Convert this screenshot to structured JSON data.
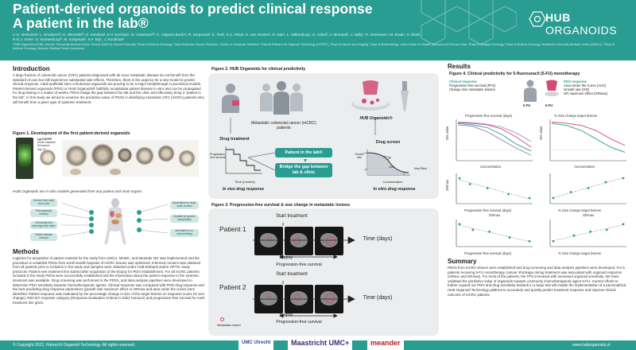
{
  "header": {
    "title_line1": "Patient-derived organoids to predict clinical response",
    "title_line2": "A patient in the lab®",
    "authors": "C.S. Verissimo¹, L. Smabers²³, E. Wensink²³, E. Koedoot¹, E.V. Encinas¹, M. Huismans²³, C. Higuera Barón¹, R. Korporaal¹, E. Teal¹, K.C. Pitsa¹, E. van Oosten², R. Nair¹, L. Valkenburg¹, G. Cirkel¹, A. Brousali¹, J. Sally¹, R. Overmeer¹, M. Braat¹, S. Elias², R.G.J. Vries¹, O. Kranenburg²³, M. Koopman², S.F. Boj¹, J. Roodhart²",
    "affiliations": "¹HUB Organoids (HUB), Utrecht, ²University Medical Center Utrecht (UMCU) Utrecht University, ³Dept of Medical Oncology, ⁴Dept Molecular Cancer Research, Center for Molecular Medicine, ⁵Utrecht Platform for Organoid Technology (UPORT), ⁶Dept of Cancer and Imaging, ⁷Dept of Epidemiology, Julius Center for Health Sciences and Primary Care, ⁸Dept of Surgical Oncology, ⁹Dept of Medical Oncology, Maastricht University Medical Center (MUMC), ¹⁰Dept of Medical Oncology, Meander Medical Center Amersfoort",
    "logo_name": "HUB",
    "logo_suffix": " ORGANOIDS"
  },
  "intro": {
    "heading": "Introduction",
    "text": "A large fraction of colorectal cancer (CRC) patients diagnosed with de novo metastatic disease do not benefit from the standard of care but still experience substantial side effects. Therefore, there is the urgency for a new model to predict clinical response. Adult epithelial stem cell-derived organoids are proving to be a major breakthrough in preclinical models. Patient-derived organoids (PDO) or HUB Organoids® faithfully recapitulate patient disease in vitro and can be propagated for drug testing in a matter of weeks. PDOs bridge the gap between the lab and the clinic and effectively bring a \"patient in the lab\". In this study we aimed to examine the predictive value of PDOs in identifying metastatic CRC (mCRC) patients who will benefit from a given type of systemic treatment.",
    "fig1_title": "Figure 1. Development of the first patient-derived organoids",
    "fig1_caption": "HUB Organoids are in vitro models generated from any patient and most organs",
    "fig1_tags": [
      "Lgr5-EGFP",
      "Small Intestine Enclosure",
      "day 14"
    ],
    "fig1_bubbles_left": [
      "Derived from adult stem cells",
      "Phenotypically relevant",
      "Genetically and phenotypically stable",
      "Patient disease relevant"
    ],
    "fig1_bubbles_right": [
      "Expandable for large-scale screens",
      "Suitable for genetic manipulation",
      "Amenable to co-culture/editing"
    ]
  },
  "methods": {
    "heading": "Methods",
    "text": "Logistics for acquisition of patient material for the study from UMCU, MUMC, and Meander MC was implemented and the procedure to establish PDOs from small needle biopsies of mCRC tissues was optimized. Informed consent was obtained from all patients prior to inclusion in the study and samples were obtained under HUB Biobank and/or OPTIC study protocols. Patient new treatment line started after acquisition of the biopsy for PDO establishment. For all mCRC patients included in the study PDOs were successfully established and the information about the patient response to the systemic treatment was available. Drug screening was performed in the PDOs, and data analysis pipelines were developed to determine PDO sensitivity towards chemotherapeutic agents. Clinical response was compared with PDO drug response and the best predicting drug response parameters (growth rate maximum effect or GRmax and area under the curve) were identified. Patient response was evaluated by the percentage change in size of the target lesions on response scans (% size change), RECIST response category (Response Evaluation Criteria in Solid Tumours) and progression-free survival for each treatment line given."
  },
  "fig2": {
    "title": "Figure 2. HUB Organoids for clinical predictivity",
    "cohort": "Metastatic colorectal cancer (mCRC) patients",
    "hub_label": "HUB Organoids®",
    "drug_screen": "Drug screen",
    "drug_treatment": "Drug treatment",
    "pfs_axis": "Progression-free survival",
    "time_axis": "Time (months)",
    "in_vivo": "In vivo drug response",
    "in_vitro": "In vitro drug response",
    "box1": "Patient in the lab®",
    "box2_line1": "Bridge the gap between",
    "box2_line2": "lab & clinic",
    "growth_rate": "Growth rate",
    "concentration": "Concentration",
    "auc": "AUC",
    "max_effect": "Max Effect"
  },
  "fig3": {
    "title": "Figure 3. Progression-free survival & size change in metastatic lesions",
    "start_treatment": "Start treatment",
    "biopsy": "Biopsy",
    "pfs": "Progression-free survival",
    "time_days": "Time (days)",
    "patient1": "Patient 1",
    "patient2": "Patient 2",
    "metastatic_lesion": "Metastatic lesion"
  },
  "results": {
    "heading": "Results",
    "fig4_title": "Figure 4. Clinical predictivity for 5-fluorouracil (5-FU) monotherapy",
    "clin_resp_head": "Clinical response",
    "clin_resp_items": [
      "Progression free survival (PFS)",
      "Change size metastatic lesions"
    ],
    "pdo_resp_head": "PDO response",
    "pdo_resp_items": [
      "Area Under the Curve (AUC)",
      "Growth rate (GR)",
      "GR maximum effect (GRmax)"
    ],
    "drug_5fu": "5-FU",
    "plot_a_title": "Progression-free survival (days)",
    "plot_b_title": "% Size change target lesions",
    "gr_value": "GR value",
    "concentration": "Concentration",
    "gr_max": "GRmax",
    "plot_c_x": "Progression-free survival (days)",
    "plot_d_x": "% Size change target lesions",
    "plot_ef_title": "GRmax"
  },
  "summary": {
    "heading": "Summary",
    "text": "PDOs from mCRC tissues were established and drug screening and data analysis pipelines were developed. For 5 patients receiving 5-FU monotherapy, tumour shrinkage during treatment was associated with organoid response (GRauc and GRmax). For most of the patients, the PFS increased with increased organoid sensitivity. We have validated the predictive value of organoids towards commonly chemotherapeutic agent 5-FU. Current efforts to further expand our PDO and drug sensitivity biobank in a large trial will enable the implementation of a personalized HUB Organoid Technology platform to accurately and quickly predict treatment response and improve clinical outcome of mCRC patients."
  },
  "footer": {
    "copyright": "© Copyright 2022, Hubrecht Organoid Technology. All rights reserved.",
    "partner1": "UMC Utrecht",
    "partner2": "Maastricht UMC+",
    "partner3": "meander",
    "url": "www.huborganoids.nl"
  },
  "colors": {
    "teal": "#2a9d92",
    "pink": "#d14b73",
    "panel": "#ecedee"
  },
  "chart_data": [
    {
      "type": "line",
      "title": "Progression-free survival (days)",
      "ylabel": "GR value",
      "xlabel": "Concentration",
      "series": [
        {
          "values": [
            0.95,
            0.9,
            0.8,
            0.55,
            0.2,
            -0.05
          ]
        },
        {
          "values": [
            0.98,
            0.95,
            0.9,
            0.75,
            0.45,
            0.1
          ]
        },
        {
          "values": [
            0.9,
            0.85,
            0.65,
            0.35,
            0.05,
            -0.2
          ]
        },
        {
          "values": [
            1.0,
            0.98,
            0.92,
            0.82,
            0.6,
            0.3
          ]
        }
      ]
    },
    {
      "type": "line",
      "title": "% Size change target lesions",
      "ylabel": "GR value",
      "xlabel": "Concentration",
      "series": [
        {
          "values": [
            0.95,
            0.88,
            0.7,
            0.4,
            0.1,
            -0.1
          ]
        },
        {
          "values": [
            1.0,
            0.96,
            0.88,
            0.7,
            0.4,
            0.15
          ]
        }
      ]
    },
    {
      "type": "scatter",
      "xlabel": "Progression-free survival (days)",
      "ylabel": "GRmax",
      "points": [
        [
          60,
          0.6
        ],
        [
          90,
          0.45
        ],
        [
          140,
          0.35
        ],
        [
          200,
          0.2
        ],
        [
          260,
          0.1
        ]
      ]
    },
    {
      "type": "scatter",
      "xlabel": "% Size change target lesions",
      "ylabel": "GRmax",
      "points": [
        [
          -40,
          -0.1
        ],
        [
          -20,
          0.05
        ],
        [
          0,
          0.15
        ],
        [
          20,
          0.3
        ],
        [
          40,
          0.4
        ]
      ]
    },
    {
      "type": "scatter",
      "title": "GRmax",
      "xlabel": "Progression-free survival (days)",
      "ylabel": "GRmax",
      "points": [
        [
          60,
          0.5
        ],
        [
          100,
          0.35
        ],
        [
          150,
          0.3
        ],
        [
          210,
          0.15
        ],
        [
          270,
          0.05
        ]
      ]
    },
    {
      "type": "scatter",
      "title": "GRmax",
      "xlabel": "% Size change target lesions",
      "ylabel": "GRmax",
      "points": [
        [
          -40,
          -0.05
        ],
        [
          -15,
          0.1
        ],
        [
          5,
          0.2
        ],
        [
          25,
          0.25
        ],
        [
          45,
          0.4
        ]
      ]
    }
  ]
}
